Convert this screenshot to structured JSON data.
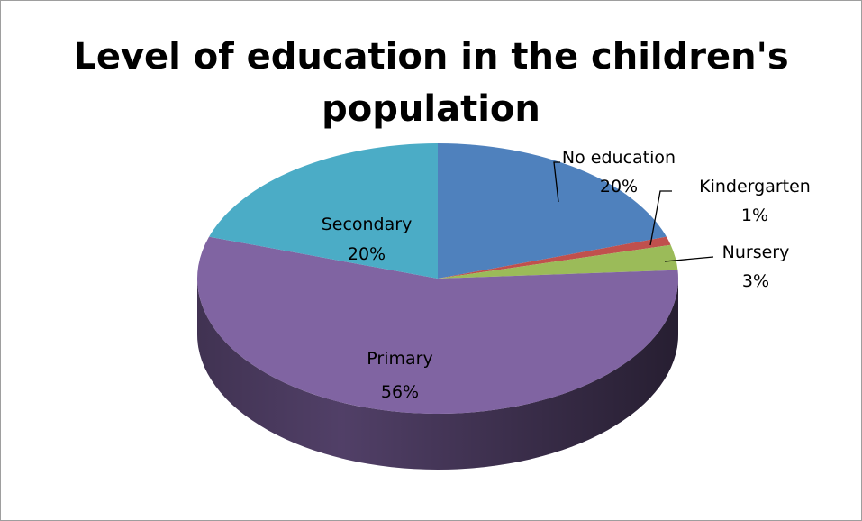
{
  "chart_data": {
    "type": "pie",
    "title_lines": [
      "Level of education in the children's",
      "population"
    ],
    "style": "3d",
    "slices": [
      {
        "name": "No education",
        "value": 20,
        "label": "20%",
        "color": "#4F81BD"
      },
      {
        "name": "Kindergarten",
        "value": 1,
        "label": "1%",
        "color": "#C0504D"
      },
      {
        "name": "Nursery",
        "value": 3,
        "label": "3%",
        "color": "#9BBB59"
      },
      {
        "name": "Primary",
        "value": 56,
        "label": "56%",
        "color": "#8064A2"
      },
      {
        "name": "Secondary",
        "value": 20,
        "label": "20%",
        "color": "#4BACC6"
      }
    ]
  }
}
